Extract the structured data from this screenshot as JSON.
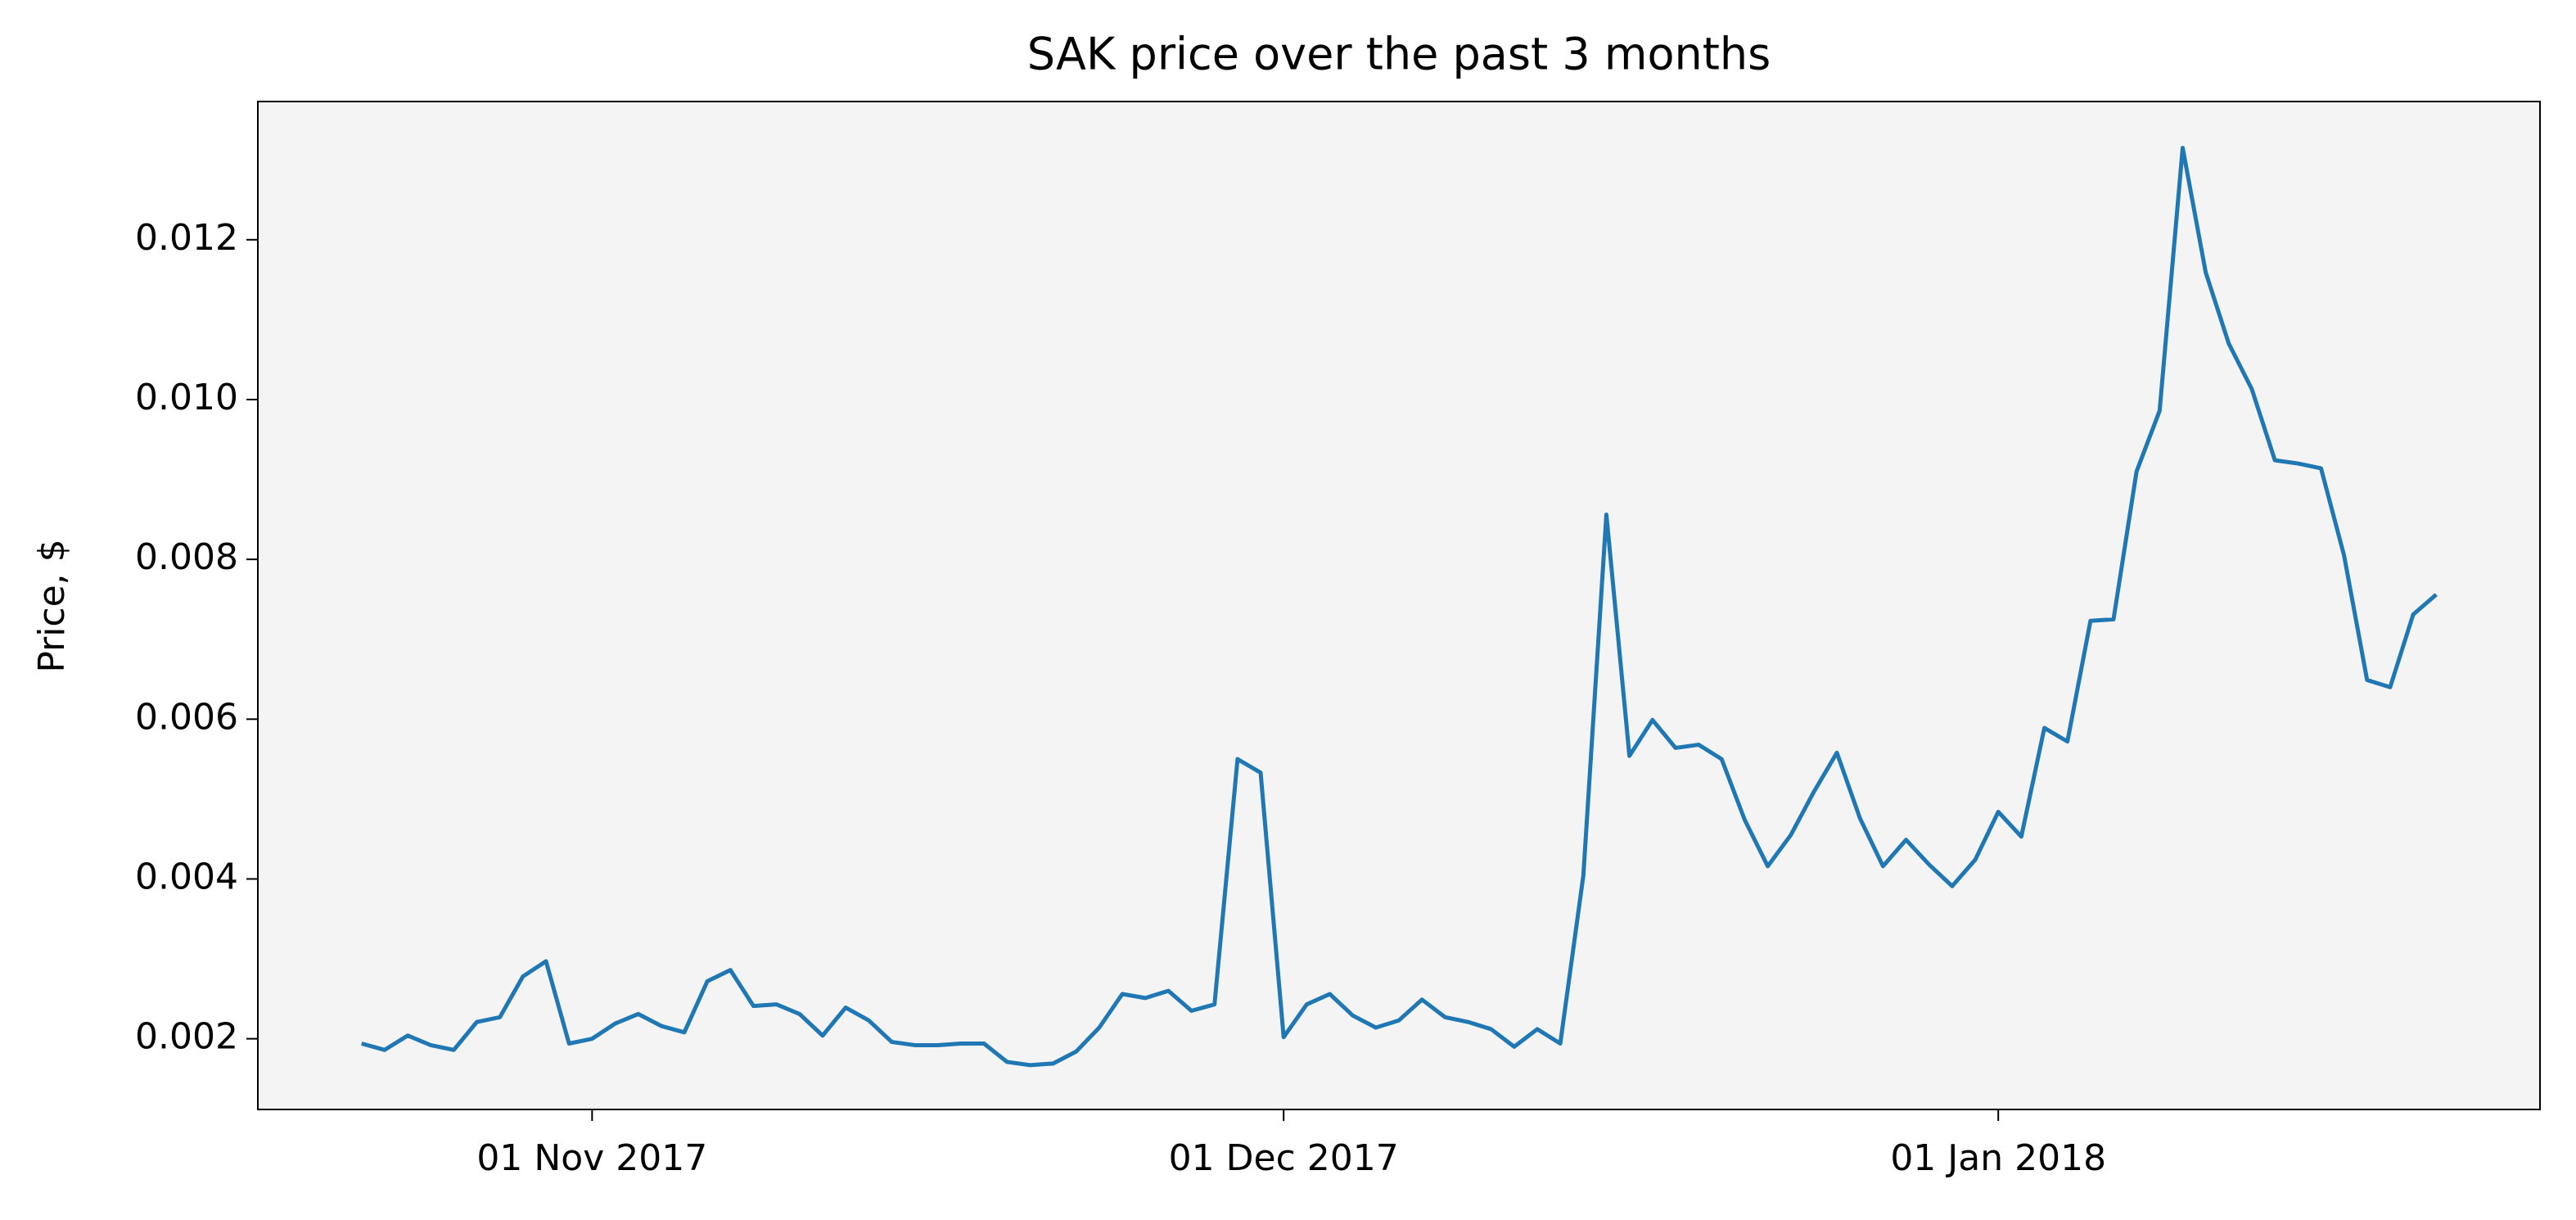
{
  "chart_data": {
    "type": "line",
    "title": "SAK price over the past 3 months",
    "y_label": "Price, $",
    "x": [
      "2017-10-22",
      "2017-10-23",
      "2017-10-24",
      "2017-10-25",
      "2017-10-26",
      "2017-10-27",
      "2017-10-28",
      "2017-10-29",
      "2017-10-30",
      "2017-10-31",
      "2017-11-01",
      "2017-11-02",
      "2017-11-03",
      "2017-11-04",
      "2017-11-05",
      "2017-11-06",
      "2017-11-07",
      "2017-11-08",
      "2017-11-09",
      "2017-11-10",
      "2017-11-11",
      "2017-11-12",
      "2017-11-13",
      "2017-11-14",
      "2017-11-15",
      "2017-11-16",
      "2017-11-17",
      "2017-11-18",
      "2017-11-19",
      "2017-11-20",
      "2017-11-21",
      "2017-11-22",
      "2017-11-23",
      "2017-11-24",
      "2017-11-25",
      "2017-11-26",
      "2017-11-27",
      "2017-11-28",
      "2017-11-29",
      "2017-11-30",
      "2017-12-01",
      "2017-12-02",
      "2017-12-03",
      "2017-12-04",
      "2017-12-05",
      "2017-12-06",
      "2017-12-07",
      "2017-12-08",
      "2017-12-09",
      "2017-12-10",
      "2017-12-11",
      "2017-12-12",
      "2017-12-13",
      "2017-12-14",
      "2017-12-15",
      "2017-12-16",
      "2017-12-17",
      "2017-12-18",
      "2017-12-19",
      "2017-12-20",
      "2017-12-21",
      "2017-12-22",
      "2017-12-23",
      "2017-12-24",
      "2017-12-25",
      "2017-12-26",
      "2017-12-27",
      "2017-12-28",
      "2017-12-29",
      "2017-12-30",
      "2017-12-31",
      "2018-01-01",
      "2018-01-02",
      "2018-01-03",
      "2018-01-04",
      "2018-01-05",
      "2018-01-06",
      "2018-01-07",
      "2018-01-08",
      "2018-01-09",
      "2018-01-10",
      "2018-01-11",
      "2018-01-12",
      "2018-01-13",
      "2018-01-14",
      "2018-01-15",
      "2018-01-16",
      "2018-01-17",
      "2018-01-18",
      "2018-01-19",
      "2018-01-20"
    ],
    "series": [
      {
        "name": "SAK",
        "color": "#1f77b4",
        "values": [
          0.00194,
          0.00186,
          0.00204,
          0.00192,
          0.00186,
          0.00221,
          0.00227,
          0.00278,
          0.00297,
          0.00194,
          0.002,
          0.00219,
          0.00231,
          0.00216,
          0.00208,
          0.00272,
          0.00286,
          0.00241,
          0.00243,
          0.00231,
          0.00204,
          0.00239,
          0.00223,
          0.00196,
          0.00192,
          0.00192,
          0.00194,
          0.00194,
          0.00171,
          0.00167,
          0.00169,
          0.00184,
          0.00214,
          0.00256,
          0.00251,
          0.0026,
          0.00235,
          0.00243,
          0.0055,
          0.00533,
          0.00202,
          0.00243,
          0.00256,
          0.00229,
          0.00214,
          0.00223,
          0.00249,
          0.00227,
          0.00221,
          0.00212,
          0.0019,
          0.00212,
          0.00194,
          0.00404,
          0.00856,
          0.00554,
          0.00599,
          0.00564,
          0.00568,
          0.0055,
          0.00474,
          0.00416,
          0.00455,
          0.00509,
          0.00558,
          0.00476,
          0.00416,
          0.00449,
          0.00418,
          0.00391,
          0.00424,
          0.00484,
          0.00453,
          0.00589,
          0.00572,
          0.00723,
          0.00725,
          0.0091,
          0.00986,
          0.01315,
          0.01159,
          0.0107,
          0.01013,
          0.00924,
          0.0092,
          0.00914,
          0.00805,
          0.00649,
          0.0064,
          0.00731,
          0.00756
        ]
      }
    ],
    "xlim": [
      "2017-10-17T12:00:00Z",
      "2018-01-24T12:00:00Z"
    ],
    "xticks": [
      {
        "value": "2017-11-01",
        "label": "01 Nov 2017"
      },
      {
        "value": "2017-12-01",
        "label": "01 Dec 2017"
      },
      {
        "value": "2018-01-01",
        "label": "01 Jan 2018"
      }
    ],
    "ylim": [
      0.001115,
      0.01373
    ],
    "yticks": [
      0.002,
      0.004,
      0.006,
      0.008,
      {
        "value": 0.01,
        "label": "0.010"
      },
      0.012
    ],
    "background": "#f4f4f4",
    "grid": false
  }
}
